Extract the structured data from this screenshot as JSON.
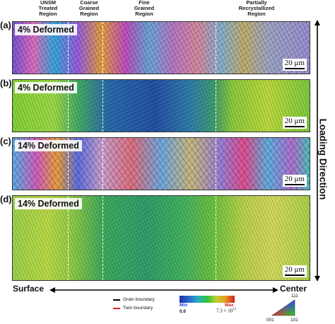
{
  "regions": [
    "UNSM\nTreated\nRegion",
    "Coarse\nGrained\nRegion",
    "Fine\nGrained\nRegion",
    "Partially\nRecrystallized\nRegion"
  ],
  "panels": [
    {
      "letter": "(a)",
      "label": "4% Deformed",
      "map": "ipf",
      "scale": "20 μm"
    },
    {
      "letter": "(b)",
      "label": "4% Deformed",
      "map": "kam",
      "scale": "20 μm"
    },
    {
      "letter": "(c)",
      "label": "14% Deformed",
      "map": "ipf",
      "scale": "20 μm"
    },
    {
      "letter": "(d)",
      "label": "14% Deformed",
      "map": "kam",
      "scale": "20 μm"
    }
  ],
  "axis": {
    "left": "Surface",
    "right": "Center",
    "vertical": "Loading Direction"
  },
  "legend": {
    "grain_boundary": "Grain boundary",
    "twin_boundary": "Twin boundary",
    "grain_color": "#000000",
    "twin_color": "#e02020",
    "min_label": "Min",
    "max_label": "Max",
    "min_value": "0.0",
    "max_value": "7.3 × 10",
    "max_exp": "15",
    "ipf_top": "111",
    "ipf_left": "001",
    "ipf_right": "101"
  },
  "colors": {
    "kam_low": "#1b2fb0",
    "kam_mid": "#22b14c",
    "kam_high": "#e03020",
    "min_color": "#1f3bd6",
    "max_color": "#d11f1f"
  }
}
